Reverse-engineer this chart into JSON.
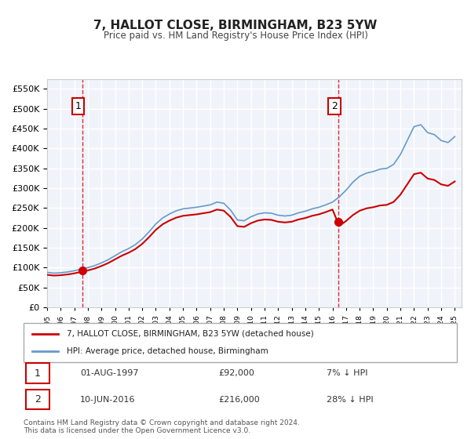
{
  "title": "7, HALLOT CLOSE, BIRMINGHAM, B23 5YW",
  "subtitle": "Price paid vs. HM Land Registry's House Price Index (HPI)",
  "legend_line1": "7, HALLOT CLOSE, BIRMINGHAM, B23 5YW (detached house)",
  "legend_line2": "HPI: Average price, detached house, Birmingham",
  "sale1_label": "1",
  "sale1_date": "01-AUG-1997",
  "sale1_price": "£92,000",
  "sale1_hpi": "7% ↓ HPI",
  "sale2_label": "2",
  "sale2_date": "10-JUN-2016",
  "sale2_price": "£216,000",
  "sale2_hpi": "28% ↓ HPI",
  "footer": "Contains HM Land Registry data © Crown copyright and database right 2024.\nThis data is licensed under the Open Government Licence v3.0.",
  "sale_color": "#cc0000",
  "hpi_color": "#6699cc",
  "vline_color": "#cc0000",
  "background_color": "#f0f4fa",
  "plot_bg": "#f0f4fa",
  "grid_color": "#ffffff",
  "label_box_color": "#cc0000",
  "ylim_min": 0,
  "ylim_max": 575000,
  "sale1_year": 1997.58,
  "sale2_year": 2016.44,
  "sale1_value": 92000,
  "sale2_value": 216000
}
